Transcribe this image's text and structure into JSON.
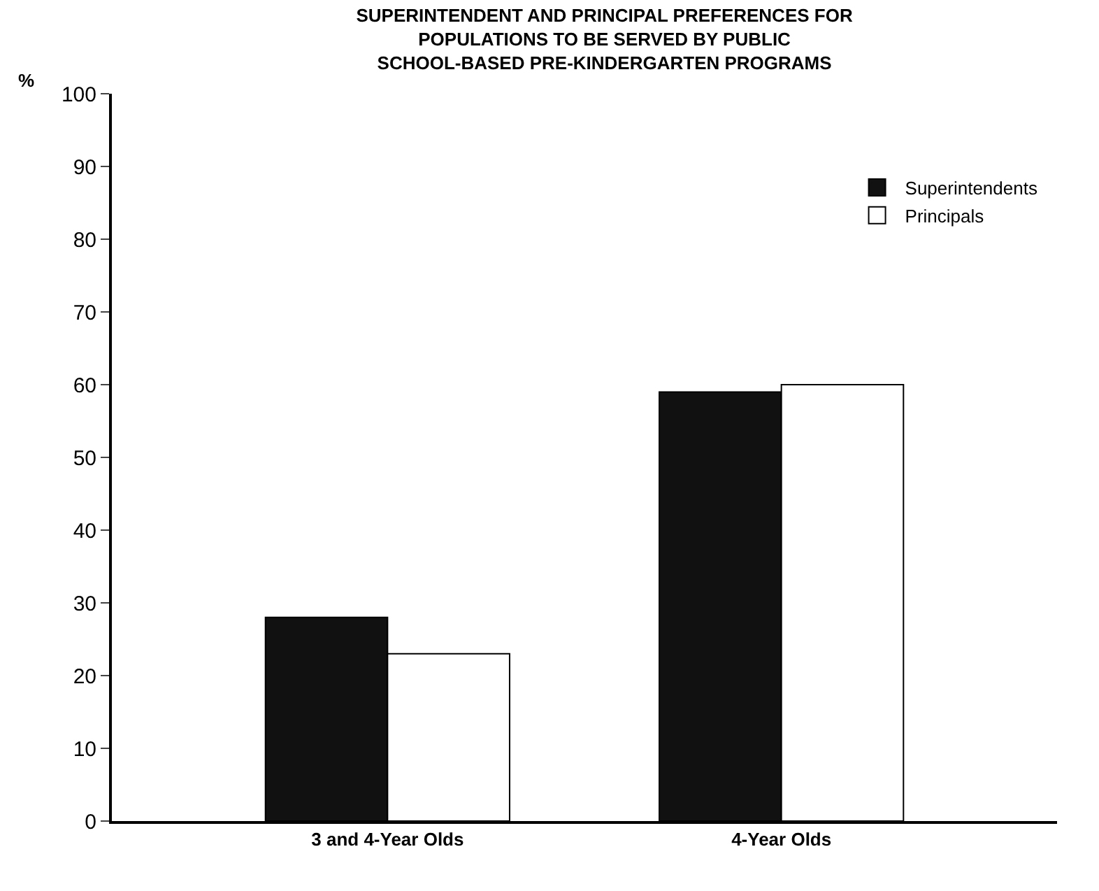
{
  "chart_data": {
    "type": "bar",
    "title": "SUPERINTENDENT AND PRINCIPAL PREFERENCES FOR\nPOPULATIONS TO BE SERVED BY PUBLIC\nSCHOOL-BASED PRE-KINDERGARTEN PROGRAMS",
    "ylabel": "%",
    "categories": [
      "3 and 4-Year Olds",
      "4-Year Olds"
    ],
    "series": [
      {
        "name": "Superintendents",
        "color": "#111111",
        "values": [
          28,
          59
        ]
      },
      {
        "name": "Principals",
        "color": "#ffffff",
        "values": [
          23,
          60
        ]
      }
    ],
    "ylim": [
      0,
      100
    ],
    "yticks": [
      0,
      10,
      20,
      30,
      40,
      50,
      60,
      70,
      80,
      90,
      100
    ],
    "grid": false,
    "legend": "top right"
  }
}
